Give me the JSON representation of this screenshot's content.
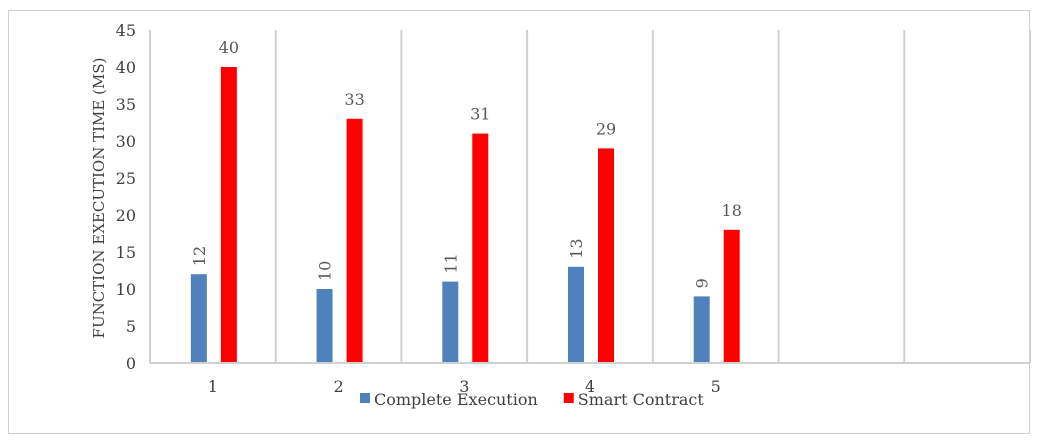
{
  "chart_data": {
    "type": "bar",
    "title": "",
    "xlabel": "",
    "ylabel": "FUNCTION EXECUTION TIME (MS)",
    "ylim": [
      0,
      45
    ],
    "ytick_step": 5,
    "categories": [
      "1",
      "2",
      "3",
      "4",
      "5",
      "",
      ""
    ],
    "series": [
      {
        "name": "Complete Execution",
        "color": "#4f81bd",
        "values": [
          12,
          10,
          11,
          13,
          9,
          null,
          null
        ]
      },
      {
        "name": "Smart Contract",
        "color": "#ff0000",
        "values": [
          40,
          33,
          31,
          29,
          18,
          null,
          null
        ]
      }
    ],
    "grid": {
      "vertical_separators": true,
      "horizontal": false
    },
    "legend": "bottom"
  }
}
